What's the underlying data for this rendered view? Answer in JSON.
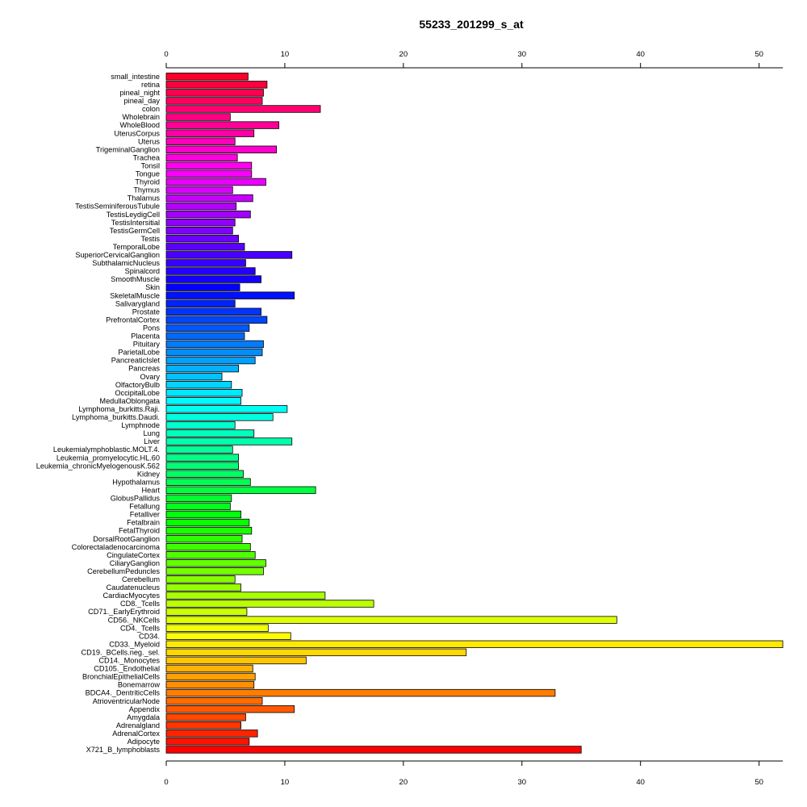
{
  "chart_data": {
    "type": "bar",
    "orientation": "horizontal",
    "title": "55233_201299_s_at",
    "xlabel": "",
    "ylabel": "",
    "xlim": [
      0,
      52
    ],
    "ticks": [
      0,
      10,
      20,
      30,
      40,
      50
    ],
    "grid": false,
    "legend": "none",
    "categories": [
      "small_intestine",
      "retina",
      "pineal_night",
      "pineal_day",
      "colon",
      "Wholebrain",
      "WholeBlood",
      "UterusCorpus",
      "Uterus",
      "TrigeminalGanglion",
      "Trachea",
      "Tonsil",
      "Tongue",
      "Thyroid",
      "Thymus",
      "Thalamus",
      "TestisSeminiferousTubule",
      "TestisLeydigCell",
      "TestisIntersitial",
      "TestisGermCell",
      "Testis",
      "TemporalLobe",
      "SuperiorCervicalGanglion",
      "SubthalamicNucleus",
      "Spinalcord",
      "SmoothMuscle",
      "Skin",
      "SkeletalMuscle",
      "Salivarygland",
      "Prostate",
      "PrefrontalCortex",
      "Pons",
      "Placenta",
      "Pituitary",
      "ParietalLobe",
      "PancreaticIslet",
      "Pancreas",
      "Ovary",
      "OlfactoryBulb",
      "OccipitalLobe",
      "MedullaOblongata",
      "Lymphoma_burkitts.Raji.",
      "Lymphoma_burkitts.Daudi.",
      "Lymphnode",
      "Lung",
      "Liver",
      "Leukemialymphoblastic.MOLT.4.",
      "Leukemia_promyelocytic.HL.60",
      "Leukemia_chronicMyelogenousK.562",
      "Kidney",
      "Hypothalamus",
      "Heart",
      "GlobusPallidus",
      "Fetallung",
      "Fetalliver",
      "Fetalbrain",
      "FetalThyroid",
      "DorsalRootGanglion",
      "Colorectaladenocarcinoma",
      "CingulateCortex",
      "CiliaryGanglion",
      "CerebellumPeduncles",
      "Cerebellum",
      "Caudatenucleus",
      "CardiacMyocytes",
      "CD8._Tcells",
      "CD71._EarlyErythroid",
      "CD56._NKCells",
      "CD4._Tcells",
      "CD34.",
      "CD33._Myeloid",
      "CD19._BCells.neg._sel.",
      "CD14._Monocytes",
      "CD105._Endothelial",
      "BronchialEpithelialCells",
      "Bonemarrow",
      "BDCA4._DentriticCells",
      "AtrioventricularNode",
      "Appendix",
      "Amygdala",
      "Adrenalgland",
      "AdrenalCortex",
      "Adipocyte",
      "X721_B_lymphoblasts"
    ],
    "values": [
      6.9,
      8.5,
      8.2,
      8.1,
      13.0,
      5.4,
      9.5,
      7.4,
      5.8,
      9.3,
      6.0,
      7.2,
      7.2,
      8.4,
      5.6,
      7.3,
      5.9,
      7.1,
      5.8,
      5.6,
      6.1,
      6.6,
      10.6,
      6.7,
      7.5,
      8.0,
      6.2,
      10.8,
      5.8,
      8.0,
      8.5,
      7.0,
      6.6,
      8.2,
      8.1,
      7.5,
      6.1,
      4.7,
      5.5,
      6.4,
      6.3,
      10.2,
      9.0,
      5.8,
      7.4,
      10.6,
      5.6,
      6.1,
      6.1,
      6.5,
      7.1,
      12.6,
      5.5,
      5.4,
      6.3,
      7.0,
      7.2,
      6.4,
      7.1,
      7.5,
      8.4,
      8.2,
      5.8,
      6.3,
      13.4,
      17.5,
      6.8,
      38.0,
      8.6,
      10.5,
      52.0,
      25.3,
      11.8,
      7.3,
      7.5,
      7.4,
      32.8,
      8.1,
      10.8,
      6.7,
      6.3,
      7.7,
      7.0,
      35.0
    ]
  }
}
